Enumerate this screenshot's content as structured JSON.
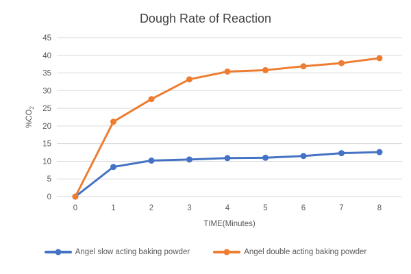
{
  "chart_data": {
    "type": "line",
    "title": "Dough Rate of Reaction",
    "xlabel": "TIME(Minutes)",
    "ylabel": "%CO2",
    "ylabel_base": "%CO",
    "ylabel_sub": "2",
    "categories": [
      "0",
      "1",
      "2",
      "3",
      "4",
      "5",
      "6",
      "7",
      "8"
    ],
    "x_values": [
      0,
      1,
      2,
      3,
      4,
      5,
      6,
      7,
      8
    ],
    "yticks": [
      0,
      5,
      10,
      15,
      20,
      25,
      30,
      35,
      40,
      45
    ],
    "ylim": [
      0,
      45
    ],
    "grid": true,
    "legend_position": "bottom",
    "colors": {
      "background": "#ffffff",
      "gridline": "#d9d9d9",
      "tick_text": "#595959",
      "title_text": "#404040",
      "series_blue": "#4472C4",
      "series_orange": "#ED7D31"
    },
    "series": [
      {
        "name": "Angel slow acting baking powder",
        "color": "#4472C4",
        "marker": "circle",
        "values": [
          0,
          8.4,
          10.2,
          10.5,
          10.9,
          11,
          11.5,
          12.3,
          12.6
        ]
      },
      {
        "name": "Angel double acting baking powder",
        "color": "#ED7D31",
        "marker": "circle",
        "values": [
          0,
          21.2,
          27.6,
          33.2,
          35.4,
          35.8,
          36.9,
          37.8,
          39.2
        ]
      }
    ]
  }
}
